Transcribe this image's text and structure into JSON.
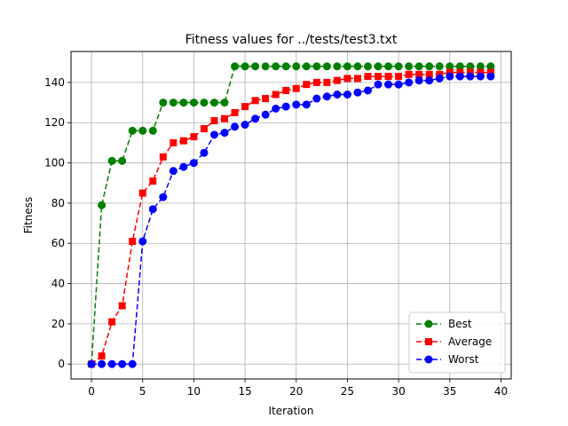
{
  "chart_data": {
    "type": "line",
    "title": "Fitness values for ../tests/test3.txt",
    "xlabel": "Iteration",
    "ylabel": "Fitness",
    "xlim": [
      -2,
      41
    ],
    "ylim": [
      -7.4,
      155.4
    ],
    "xticks": [
      0,
      5,
      10,
      15,
      20,
      25,
      30,
      35,
      40
    ],
    "yticks": [
      0,
      20,
      40,
      60,
      80,
      100,
      120,
      140
    ],
    "grid": true,
    "legend_position": "lower-right",
    "x": [
      0,
      1,
      2,
      3,
      4,
      5,
      6,
      7,
      8,
      9,
      10,
      11,
      12,
      13,
      14,
      15,
      16,
      17,
      18,
      19,
      20,
      21,
      22,
      23,
      24,
      25,
      26,
      27,
      28,
      29,
      30,
      31,
      32,
      33,
      34,
      35,
      36,
      37,
      38,
      39
    ],
    "series": [
      {
        "name": "Best",
        "color": "#008000",
        "marker": "circle",
        "values": [
          0,
          79,
          101,
          101,
          116,
          116,
          116,
          130,
          130,
          130,
          130,
          130,
          130,
          130,
          148,
          148,
          148,
          148,
          148,
          148,
          148,
          148,
          148,
          148,
          148,
          148,
          148,
          148,
          148,
          148,
          148,
          148,
          148,
          148,
          148,
          148,
          148,
          148,
          148,
          148
        ]
      },
      {
        "name": "Average",
        "color": "#ff0000",
        "marker": "square",
        "values": [
          0,
          4,
          21,
          29,
          61,
          85,
          91,
          103,
          110,
          111,
          113,
          117,
          121,
          122,
          125,
          128,
          131,
          132,
          134,
          136,
          137,
          139,
          140,
          140,
          141,
          142,
          142,
          143,
          143,
          143,
          143,
          144,
          144,
          144,
          144,
          145,
          145,
          145,
          145,
          145
        ]
      },
      {
        "name": "Worst",
        "color": "#0000ff",
        "marker": "circle",
        "values": [
          0,
          0,
          0,
          0,
          0,
          61,
          77,
          83,
          96,
          98,
          100,
          105,
          114,
          115,
          118,
          119,
          122,
          124,
          127,
          128,
          129,
          129,
          132,
          133,
          134,
          134,
          135,
          136,
          139,
          139,
          139,
          140,
          141,
          141,
          142,
          143,
          143,
          143,
          143,
          143
        ]
      }
    ]
  }
}
